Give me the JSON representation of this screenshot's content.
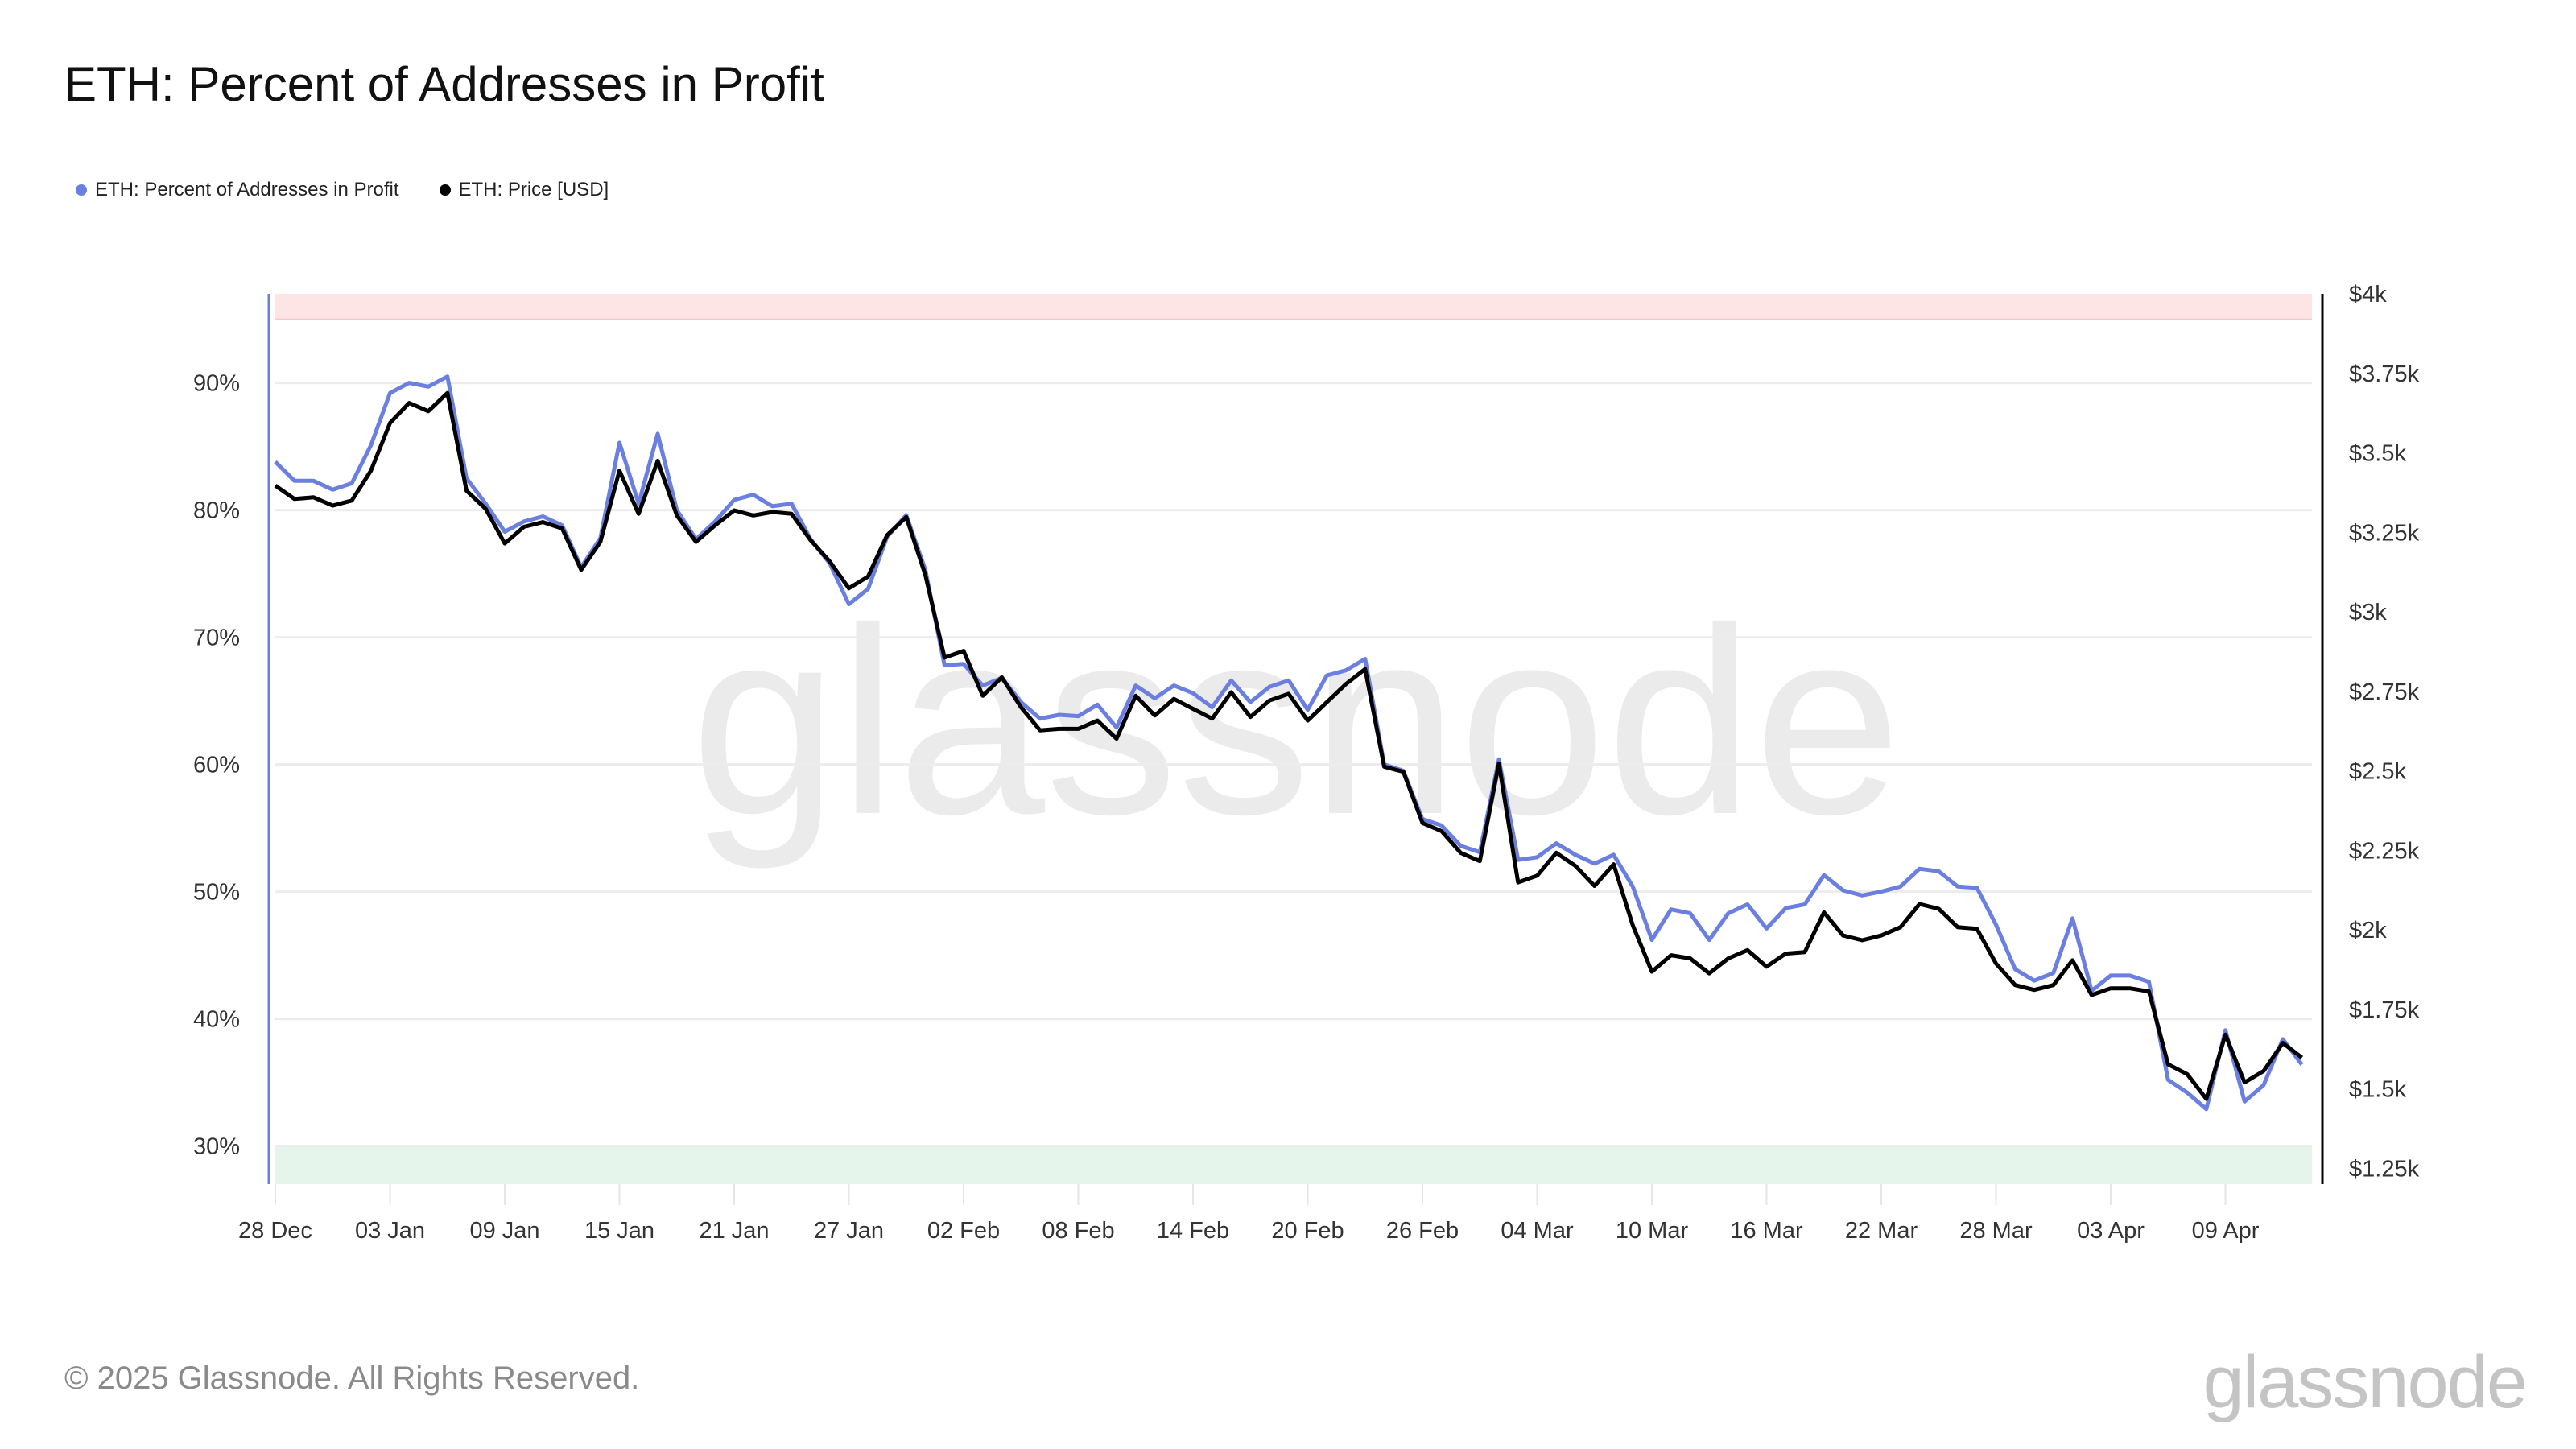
{
  "title": "ETH: Percent of Addresses in Profit",
  "legend": [
    {
      "label": "ETH: Percent of Addresses in Profit",
      "color": "#6b7fe0"
    },
    {
      "label": "ETH: Price [USD]",
      "color": "#000000"
    }
  ],
  "footer": "© 2025 Glassnode. All Rights Reserved.",
  "logo": "glassnode",
  "watermark": "glassnode",
  "chart_data": {
    "type": "line",
    "title": "ETH: Percent of Addresses in Profit",
    "x_start": "2024-12-28",
    "x_step_days": 1,
    "x_tick_labels": [
      "28 Dec",
      "03 Jan",
      "09 Jan",
      "15 Jan",
      "21 Jan",
      "27 Jan",
      "02 Feb",
      "08 Feb",
      "14 Feb",
      "20 Feb",
      "26 Feb",
      "04 Mar",
      "10 Mar",
      "16 Mar",
      "22 Mar",
      "28 Mar",
      "03 Apr",
      "09 Apr"
    ],
    "x_tick_every_days": 6,
    "y_left": {
      "ticks": [
        30,
        40,
        50,
        60,
        70,
        80,
        90
      ],
      "tick_labels": [
        "30%",
        "40%",
        "50%",
        "60%",
        "70%",
        "80%",
        "90%"
      ],
      "range": [
        27,
        97
      ]
    },
    "y_right": {
      "ticks": [
        1250,
        1500,
        1750,
        2000,
        2250,
        2500,
        2750,
        3000,
        3250,
        3500,
        3750,
        4000
      ],
      "tick_labels": [
        "$1.25k",
        "$1.5k",
        "$1.75k",
        "$2k",
        "$2.25k",
        "$2.5k",
        "$2.75k",
        "$3k",
        "$3.25k",
        "$3.5k",
        "$3.75k",
        "$4k"
      ],
      "range": [
        1200,
        4000
      ]
    },
    "bands": [
      {
        "from": 95,
        "to": 97,
        "axis": "left",
        "color": "#fde5e6"
      },
      {
        "from": 27,
        "to": 30,
        "axis": "left",
        "color": "#e5f5ec"
      }
    ],
    "grid": true,
    "series": [
      {
        "name": "ETH: Percent of Addresses in Profit",
        "axis": "left",
        "color": "#6b7fe0",
        "values": [
          83.8,
          82.3,
          82.3,
          81.6,
          82.1,
          85.1,
          89.2,
          90.0,
          89.7,
          90.5,
          82.5,
          80.5,
          78.3,
          79.1,
          79.5,
          78.8,
          75.5,
          77.8,
          85.3,
          80.5,
          86.0,
          80.0,
          77.7,
          79.1,
          80.8,
          81.2,
          80.3,
          80.5,
          77.7,
          75.8,
          72.6,
          73.8,
          77.9,
          79.6,
          75.3,
          67.8,
          67.9,
          66.2,
          66.8,
          64.9,
          63.6,
          63.9,
          63.8,
          64.7,
          62.9,
          66.2,
          65.2,
          66.2,
          65.6,
          64.5,
          66.6,
          64.9,
          66.1,
          66.6,
          64.3,
          67.0,
          67.4,
          68.3,
          60.0,
          59.5,
          55.7,
          55.2,
          53.6,
          53.1,
          60.4,
          52.5,
          52.7,
          53.8,
          52.9,
          52.2,
          52.9,
          50.4,
          46.2,
          48.6,
          48.3,
          46.2,
          48.3,
          49.0,
          47.1,
          48.7,
          49.0,
          51.3,
          50.1,
          49.7,
          50.0,
          50.4,
          51.8,
          51.6,
          50.4,
          50.3,
          47.4,
          43.9,
          43.0,
          43.6,
          47.9,
          42.2,
          43.4,
          43.4,
          42.9,
          35.2,
          34.2,
          32.9,
          39.1,
          33.5,
          34.8,
          38.4,
          36.4
        ]
      },
      {
        "name": "ETH: Price [USD]",
        "axis": "right",
        "color": "#000000",
        "values": [
          3397,
          3355,
          3360,
          3334,
          3350,
          3444,
          3594,
          3657,
          3631,
          3688,
          3381,
          3324,
          3215,
          3267,
          3282,
          3262,
          3132,
          3220,
          3444,
          3308,
          3475,
          3303,
          3220,
          3272,
          3319,
          3303,
          3314,
          3308,
          3225,
          3158,
          3074,
          3111,
          3241,
          3298,
          3116,
          2856,
          2877,
          2736,
          2794,
          2700,
          2627,
          2632,
          2632,
          2658,
          2601,
          2736,
          2674,
          2726,
          2695,
          2664,
          2747,
          2669,
          2721,
          2742,
          2658,
          2716,
          2773,
          2820,
          2513,
          2497,
          2336,
          2310,
          2242,
          2216,
          2523,
          2149,
          2170,
          2242,
          2201,
          2138,
          2206,
          2014,
          1868,
          1920,
          1910,
          1863,
          1910,
          1936,
          1884,
          1925,
          1930,
          2055,
          1982,
          1967,
          1982,
          2008,
          2081,
          2066,
          2008,
          2003,
          1894,
          1826,
          1811,
          1826,
          1904,
          1795,
          1816,
          1816,
          1806,
          1577,
          1546,
          1468,
          1670,
          1520,
          1556,
          1644,
          1598
        ]
      }
    ],
    "xlabel": "",
    "ylabel": "",
    "legend_position": "top-left"
  }
}
